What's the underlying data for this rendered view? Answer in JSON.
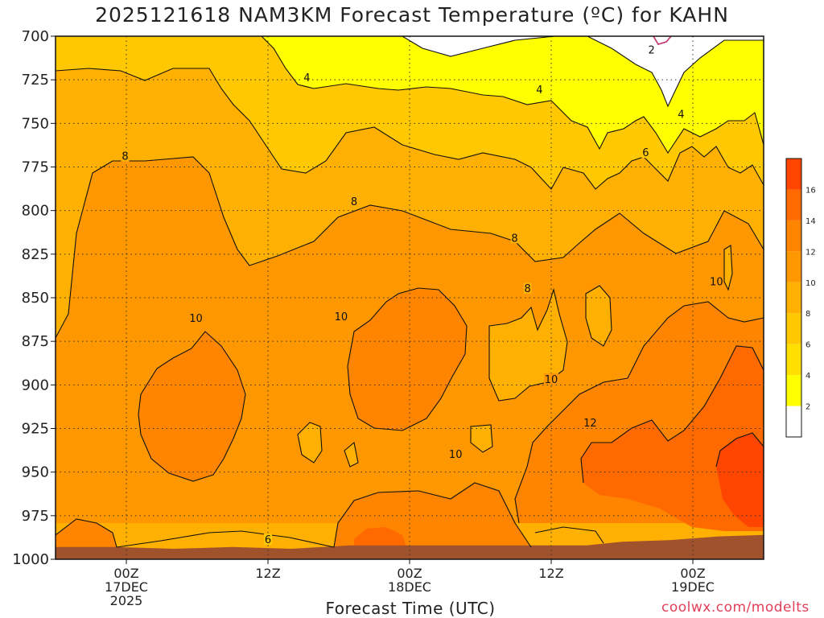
{
  "chart_data": {
    "type": "heatmap",
    "title": "2025121618 NAM3KM Forecast Temperature (ºC) for KAHN",
    "xlabel": "Forecast Time (UTC)",
    "credit": "coolwx.com/modelts",
    "y_axis": {
      "levels_hpa": [
        700,
        725,
        750,
        775,
        800,
        825,
        850,
        875,
        900,
        925,
        950,
        975,
        1000
      ],
      "range": [
        700,
        1000
      ],
      "inverted": true
    },
    "x_axis": {
      "range_hours": [
        0,
        60
      ],
      "ticks": [
        {
          "hour": 6,
          "lines": [
            "00Z",
            "17DEC",
            "2025"
          ]
        },
        {
          "hour": 18,
          "lines": [
            "12Z"
          ]
        },
        {
          "hour": 30,
          "lines": [
            "00Z",
            "18DEC"
          ]
        },
        {
          "hour": 42,
          "lines": [
            "12Z"
          ]
        },
        {
          "hour": 54,
          "lines": [
            "00Z",
            "19DEC"
          ]
        }
      ]
    },
    "grid": "dotted",
    "colorbar": {
      "position": "right",
      "bounds": [
        0,
        2,
        4,
        6,
        8,
        10,
        12,
        14,
        16,
        18
      ],
      "labels": [
        "2",
        "4",
        "6",
        "8",
        "10",
        "12",
        "14",
        "16"
      ],
      "colors": [
        "#ffffff",
        "#ffff00",
        "#ffe000",
        "#ffc800",
        "#ffb000",
        "#ff9800",
        "#ff8400",
        "#ff6a00",
        "#ff4500"
      ]
    },
    "contour_labels": [
      {
        "text": "2",
        "hour": 50.5,
        "hpa": 708
      },
      {
        "text": "4",
        "hour": 21.3,
        "hpa": 724
      },
      {
        "text": "4",
        "hour": 41.0,
        "hpa": 731
      },
      {
        "text": "4",
        "hour": 53.0,
        "hpa": 745
      },
      {
        "text": "6",
        "hour": 50.0,
        "hpa": 767
      },
      {
        "text": "8",
        "hour": 5.9,
        "hpa": 769
      },
      {
        "text": "8",
        "hour": 25.3,
        "hpa": 795
      },
      {
        "text": "8",
        "hour": 38.9,
        "hpa": 816
      },
      {
        "text": "8",
        "hour": 40.0,
        "hpa": 845
      },
      {
        "text": "10",
        "hour": 56.0,
        "hpa": 841
      },
      {
        "text": "10",
        "hour": 11.9,
        "hpa": 862
      },
      {
        "text": "10",
        "hour": 24.2,
        "hpa": 861
      },
      {
        "text": "10",
        "hour": 42.0,
        "hpa": 897
      },
      {
        "text": "10",
        "hour": 33.9,
        "hpa": 940
      },
      {
        "text": "12",
        "hour": 45.3,
        "hpa": 922
      },
      {
        "text": "6",
        "hour": 18.0,
        "hpa": 989
      }
    ],
    "terrain": {
      "surface_hpa": [
        {
          "hour": 0,
          "hpa": 993
        },
        {
          "hour": 5,
          "hpa": 993
        },
        {
          "hour": 10,
          "hpa": 994
        },
        {
          "hour": 15,
          "hpa": 993
        },
        {
          "hour": 20,
          "hpa": 994
        },
        {
          "hour": 25,
          "hpa": 992
        },
        {
          "hour": 30,
          "hpa": 992
        },
        {
          "hour": 35,
          "hpa": 992
        },
        {
          "hour": 40,
          "hpa": 992
        },
        {
          "hour": 45,
          "hpa": 992
        },
        {
          "hour": 48,
          "hpa": 990
        },
        {
          "hour": 52,
          "hpa": 989
        },
        {
          "hour": 56,
          "hpa": 987
        },
        {
          "hour": 60,
          "hpa": 986
        }
      ],
      "color": "#a0522d"
    }
  }
}
